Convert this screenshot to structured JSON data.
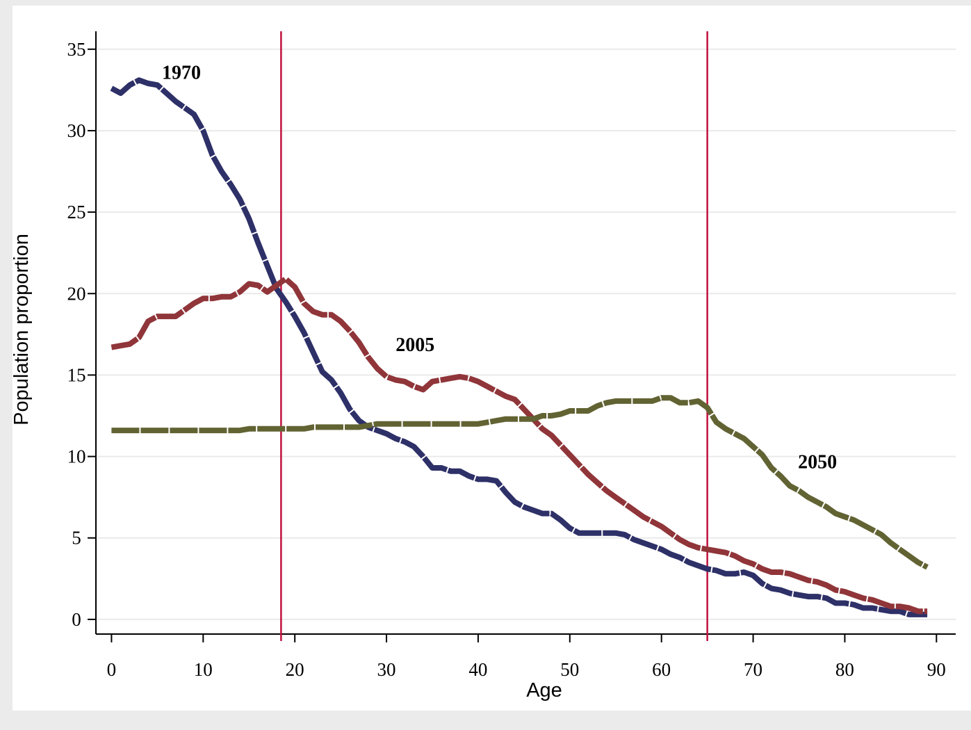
{
  "chart_data": {
    "type": "line",
    "xlabel": "Age",
    "ylabel": "Population proportion",
    "x": [
      0,
      1,
      2,
      3,
      4,
      5,
      6,
      7,
      8,
      9,
      10,
      11,
      12,
      13,
      14,
      15,
      16,
      17,
      18,
      19,
      20,
      21,
      22,
      23,
      24,
      25,
      26,
      27,
      28,
      29,
      30,
      31,
      32,
      33,
      34,
      35,
      36,
      37,
      38,
      39,
      40,
      41,
      42,
      43,
      44,
      45,
      46,
      47,
      48,
      49,
      50,
      51,
      52,
      53,
      54,
      55,
      56,
      57,
      58,
      59,
      60,
      61,
      62,
      63,
      64,
      65,
      66,
      67,
      68,
      69,
      70,
      71,
      72,
      73,
      74,
      75,
      76,
      77,
      78,
      79,
      80,
      81,
      82,
      83,
      84,
      85,
      86,
      87,
      88,
      89
    ],
    "series": [
      {
        "name": "1970",
        "color": "#2e3068",
        "values": [
          32.6,
          32.3,
          32.8,
          33.1,
          32.9,
          32.8,
          32.3,
          31.8,
          31.4,
          31.0,
          30.0,
          28.5,
          27.5,
          26.7,
          25.8,
          24.6,
          23.1,
          21.7,
          20.3,
          19.5,
          18.6,
          17.6,
          16.4,
          15.2,
          14.7,
          13.9,
          12.9,
          12.2,
          11.8,
          11.6,
          11.4,
          11.1,
          10.9,
          10.6,
          10.0,
          9.3,
          9.3,
          9.1,
          9.1,
          8.8,
          8.6,
          8.6,
          8.5,
          7.8,
          7.2,
          6.9,
          6.7,
          6.5,
          6.5,
          6.1,
          5.6,
          5.3,
          5.3,
          5.3,
          5.3,
          5.3,
          5.2,
          4.9,
          4.7,
          4.5,
          4.3,
          4.0,
          3.8,
          3.5,
          3.3,
          3.1,
          3.0,
          2.8,
          2.8,
          2.9,
          2.7,
          2.2,
          1.9,
          1.8,
          1.6,
          1.5,
          1.4,
          1.4,
          1.3,
          1.0,
          1.0,
          0.9,
          0.7,
          0.7,
          0.6,
          0.5,
          0.5,
          0.3,
          0.3,
          0.3
        ]
      },
      {
        "name": "2005",
        "color": "#903539",
        "values": [
          16.7,
          16.8,
          16.9,
          17.3,
          18.3,
          18.6,
          18.6,
          18.6,
          19.0,
          19.4,
          19.7,
          19.7,
          19.8,
          19.8,
          20.1,
          20.6,
          20.5,
          20.1,
          20.5,
          20.9,
          20.4,
          19.4,
          18.9,
          18.7,
          18.7,
          18.3,
          17.7,
          17.0,
          16.1,
          15.4,
          14.9,
          14.7,
          14.6,
          14.3,
          14.1,
          14.6,
          14.7,
          14.8,
          14.9,
          14.8,
          14.6,
          14.3,
          14.0,
          13.7,
          13.5,
          12.9,
          12.3,
          11.7,
          11.3,
          10.7,
          10.1,
          9.5,
          8.9,
          8.4,
          7.9,
          7.5,
          7.1,
          6.7,
          6.3,
          6.0,
          5.7,
          5.3,
          4.9,
          4.6,
          4.4,
          4.3,
          4.2,
          4.1,
          3.9,
          3.6,
          3.4,
          3.1,
          2.9,
          2.9,
          2.8,
          2.6,
          2.4,
          2.3,
          2.1,
          1.8,
          1.7,
          1.5,
          1.3,
          1.2,
          1.0,
          0.8,
          0.8,
          0.7,
          0.5,
          0.5
        ]
      },
      {
        "name": "2050",
        "color": "#626333",
        "values": [
          11.6,
          11.6,
          11.6,
          11.6,
          11.6,
          11.6,
          11.6,
          11.6,
          11.6,
          11.6,
          11.6,
          11.6,
          11.6,
          11.6,
          11.6,
          11.7,
          11.7,
          11.7,
          11.7,
          11.7,
          11.7,
          11.7,
          11.8,
          11.8,
          11.8,
          11.8,
          11.8,
          11.8,
          11.9,
          12.0,
          12.0,
          12.0,
          12.0,
          12.0,
          12.0,
          12.0,
          12.0,
          12.0,
          12.0,
          12.0,
          12.0,
          12.1,
          12.2,
          12.3,
          12.3,
          12.3,
          12.3,
          12.5,
          12.5,
          12.6,
          12.8,
          12.8,
          12.8,
          13.1,
          13.3,
          13.4,
          13.4,
          13.4,
          13.4,
          13.4,
          13.6,
          13.6,
          13.3,
          13.3,
          13.4,
          13.0,
          12.1,
          11.7,
          11.4,
          11.1,
          10.6,
          10.1,
          9.3,
          8.8,
          8.2,
          7.9,
          7.5,
          7.2,
          6.9,
          6.5,
          6.3,
          6.1,
          5.8,
          5.5,
          5.2,
          4.7,
          4.3,
          3.9,
          3.5,
          3.2
        ]
      }
    ],
    "annotations": [
      {
        "text": "1970",
        "x": 5.5,
        "y": 33.6
      },
      {
        "text": "2005",
        "x": 31.0,
        "y": 16.9
      },
      {
        "text": "2050",
        "x": 74.9,
        "y": 9.7
      }
    ],
    "xlines": [
      18.5,
      65
    ],
    "xline_color": "#c0103e",
    "xlim": [
      -1.7,
      92.1
    ],
    "ylim": [
      -0.9,
      36.1
    ],
    "xticks": [
      0,
      10,
      20,
      30,
      40,
      50,
      60,
      70,
      80,
      90
    ],
    "yticks": [
      0,
      5,
      10,
      15,
      20,
      25,
      30,
      35
    ],
    "grid": true
  }
}
